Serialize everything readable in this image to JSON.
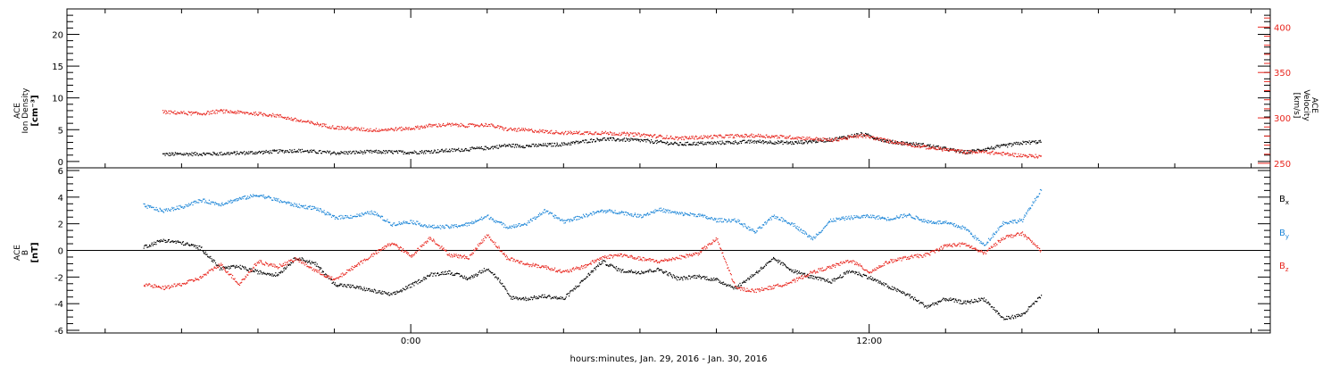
{
  "chart_data": [
    {
      "type": "scatter",
      "panel": "top",
      "ylabel_left": [
        "ACE",
        "Ion Density",
        "[cm⁻³]"
      ],
      "ylabel_right": [
        "ACE",
        "Velocity",
        "[km/s]"
      ],
      "ylim_left": [
        -1,
        24
      ],
      "ylim_right": [
        245,
        420
      ],
      "left_ticks": [
        "0",
        "5",
        "10",
        "15",
        "20"
      ],
      "right_ticks": [
        "250",
        "300",
        "350",
        "400"
      ],
      "grid": false,
      "series": [
        {
          "name": "Ion Density",
          "axis": "left",
          "color": "#000000",
          "x_hours": [
            -6.5,
            -5,
            -4,
            -3,
            -2,
            -1,
            0,
            1,
            2,
            2.5,
            3,
            4,
            5,
            6,
            7,
            8,
            9,
            10,
            11,
            11.8,
            12.5,
            13.5,
            14.5,
            15,
            15.5,
            16,
            16.5
          ],
          "values": [
            1.2,
            1.3,
            1.5,
            1.8,
            1.4,
            1.6,
            1.5,
            1.8,
            2.2,
            2.6,
            2.5,
            2.8,
            3.6,
            3.4,
            2.8,
            3.0,
            3.2,
            3.0,
            3.5,
            4.4,
            3.2,
            2.6,
            1.5,
            2.0,
            2.5,
            3.0,
            3.2
          ]
        },
        {
          "name": "Velocity",
          "axis": "right",
          "color": "#e8261e",
          "x_hours": [
            -6.5,
            -5.5,
            -5,
            -4,
            -3.5,
            -3,
            -2,
            -1,
            0,
            0.5,
            1,
            1.5,
            2,
            2.5,
            3,
            4,
            5,
            6,
            7,
            8,
            9,
            10,
            11,
            11.8,
            12.5,
            13.5,
            14.5,
            15,
            15.5,
            16,
            16.5
          ],
          "values": [
            307,
            305,
            308,
            305,
            303,
            298,
            290,
            287,
            289,
            292,
            293,
            292,
            293,
            288,
            287,
            284,
            284,
            282,
            278,
            280,
            281,
            279,
            276,
            281,
            275,
            268,
            263,
            263,
            261,
            259,
            258
          ]
        }
      ]
    },
    {
      "type": "scatter",
      "panel": "bottom",
      "ylabel_left": [
        "ACE",
        "B",
        "[nT]"
      ],
      "ylim": [
        -6.2,
        6.2
      ],
      "left_ticks": [
        "-6",
        "-4",
        "-2",
        "0",
        "2",
        "4",
        "6"
      ],
      "zero_line": true,
      "grid": false,
      "series": [
        {
          "name": "Bx",
          "color": "#000000",
          "x_hours": [
            -7,
            -6.5,
            -6,
            -5.5,
            -5,
            -4.5,
            -4,
            -3.5,
            -3,
            -2.5,
            -2,
            -1.5,
            -1,
            -0.5,
            0,
            0.5,
            1,
            1.5,
            2,
            2.3,
            2.6,
            3,
            3.5,
            4,
            4.5,
            5,
            5.5,
            6,
            6.5,
            7,
            7.5,
            8,
            8.5,
            9,
            9.5,
            10,
            10.5,
            11,
            11.5,
            12,
            12.5,
            13,
            13.5,
            14,
            14.5,
            15,
            15.5,
            16,
            16.5
          ],
          "values": [
            0.3,
            0.8,
            0.6,
            0.2,
            -1.3,
            -1.2,
            -1.6,
            -1.8,
            -0.5,
            -1.0,
            -2.5,
            -2.7,
            -3.0,
            -3.3,
            -2.6,
            -1.8,
            -1.6,
            -2.1,
            -1.3,
            -2.2,
            -3.5,
            -3.6,
            -3.4,
            -3.6,
            -2.2,
            -0.8,
            -1.5,
            -1.6,
            -1.4,
            -2.1,
            -1.9,
            -2.2,
            -2.8,
            -1.7,
            -0.6,
            -1.5,
            -2.0,
            -2.3,
            -1.5,
            -2.0,
            -2.7,
            -3.3,
            -4.2,
            -3.6,
            -3.9,
            -3.6,
            -5.1,
            -4.8,
            -3.4
          ]
        },
        {
          "name": "By",
          "color": "#1f87d8",
          "x_hours": [
            -7,
            -6.5,
            -6,
            -5.5,
            -5,
            -4.5,
            -4,
            -3.5,
            -3,
            -2.5,
            -2,
            -1.5,
            -1,
            -0.5,
            0,
            0.5,
            1,
            1.5,
            2,
            2.5,
            3,
            3.5,
            4,
            4.5,
            5,
            5.5,
            6,
            6.5,
            7,
            7.5,
            8,
            8.5,
            9,
            9.5,
            10,
            10.5,
            11,
            11.5,
            12,
            12.5,
            13,
            13.5,
            14,
            14.5,
            15,
            15.5,
            16,
            16.5
          ],
          "values": [
            3.4,
            3.0,
            3.3,
            3.8,
            3.5,
            3.9,
            4.2,
            3.8,
            3.4,
            3.2,
            2.5,
            2.6,
            2.9,
            2.0,
            2.2,
            1.8,
            1.8,
            2.0,
            2.6,
            1.8,
            2.0,
            3.0,
            2.2,
            2.6,
            3.0,
            2.9,
            2.6,
            3.1,
            2.8,
            2.7,
            2.3,
            2.3,
            1.4,
            2.6,
            2.0,
            0.9,
            2.3,
            2.5,
            2.6,
            2.4,
            2.7,
            2.2,
            2.1,
            1.7,
            0.4,
            2.1,
            2.3,
            4.6
          ]
        },
        {
          "name": "Bz",
          "color": "#e8261e",
          "x_hours": [
            -7,
            -6.5,
            -6,
            -5.5,
            -5,
            -4.5,
            -4,
            -3.5,
            -3,
            -2.5,
            -2,
            -1.5,
            -1,
            -0.5,
            0,
            0.5,
            1,
            1.5,
            2,
            2.5,
            3,
            3.5,
            4,
            4.5,
            5,
            5.5,
            6,
            6.5,
            7,
            7.5,
            8,
            8.5,
            9,
            9.5,
            10,
            10.5,
            11,
            11.5,
            12,
            12.5,
            13,
            13.5,
            14,
            14.5,
            15,
            15.5,
            16,
            16.5
          ],
          "values": [
            -2.5,
            -2.8,
            -2.5,
            -2.0,
            -1.0,
            -2.5,
            -0.8,
            -1.2,
            -0.6,
            -1.5,
            -2.2,
            -1.2,
            -0.3,
            0.6,
            -0.4,
            1.0,
            -0.3,
            -0.5,
            1.2,
            -0.5,
            -1.0,
            -1.2,
            -1.6,
            -1.2,
            -0.5,
            -0.3,
            -0.6,
            -0.8,
            -0.5,
            -0.2,
            0.9,
            -2.8,
            -3.0,
            -2.7,
            -2.3,
            -1.6,
            -1.2,
            -0.7,
            -1.6,
            -0.8,
            -0.5,
            -0.3,
            0.4,
            0.5,
            -0.2,
            1.0,
            1.3,
            0.0
          ]
        }
      ],
      "legend": [
        {
          "label": "B",
          "sub": "x",
          "color": "#000000"
        },
        {
          "label": "B",
          "sub": "y",
          "color": "#1f87d8"
        },
        {
          "label": "B",
          "sub": "z",
          "color": "#e8261e"
        }
      ]
    }
  ],
  "x_axis": {
    "xlabel": "hours:minutes, Jan. 29, 2016 - Jan. 30, 2016",
    "tick_labels": [
      "0:00",
      "12:00"
    ],
    "tick_hours": [
      0,
      12
    ],
    "xlim_hours": [
      -9,
      22.5
    ],
    "minor_tick_step_hours": 2
  }
}
